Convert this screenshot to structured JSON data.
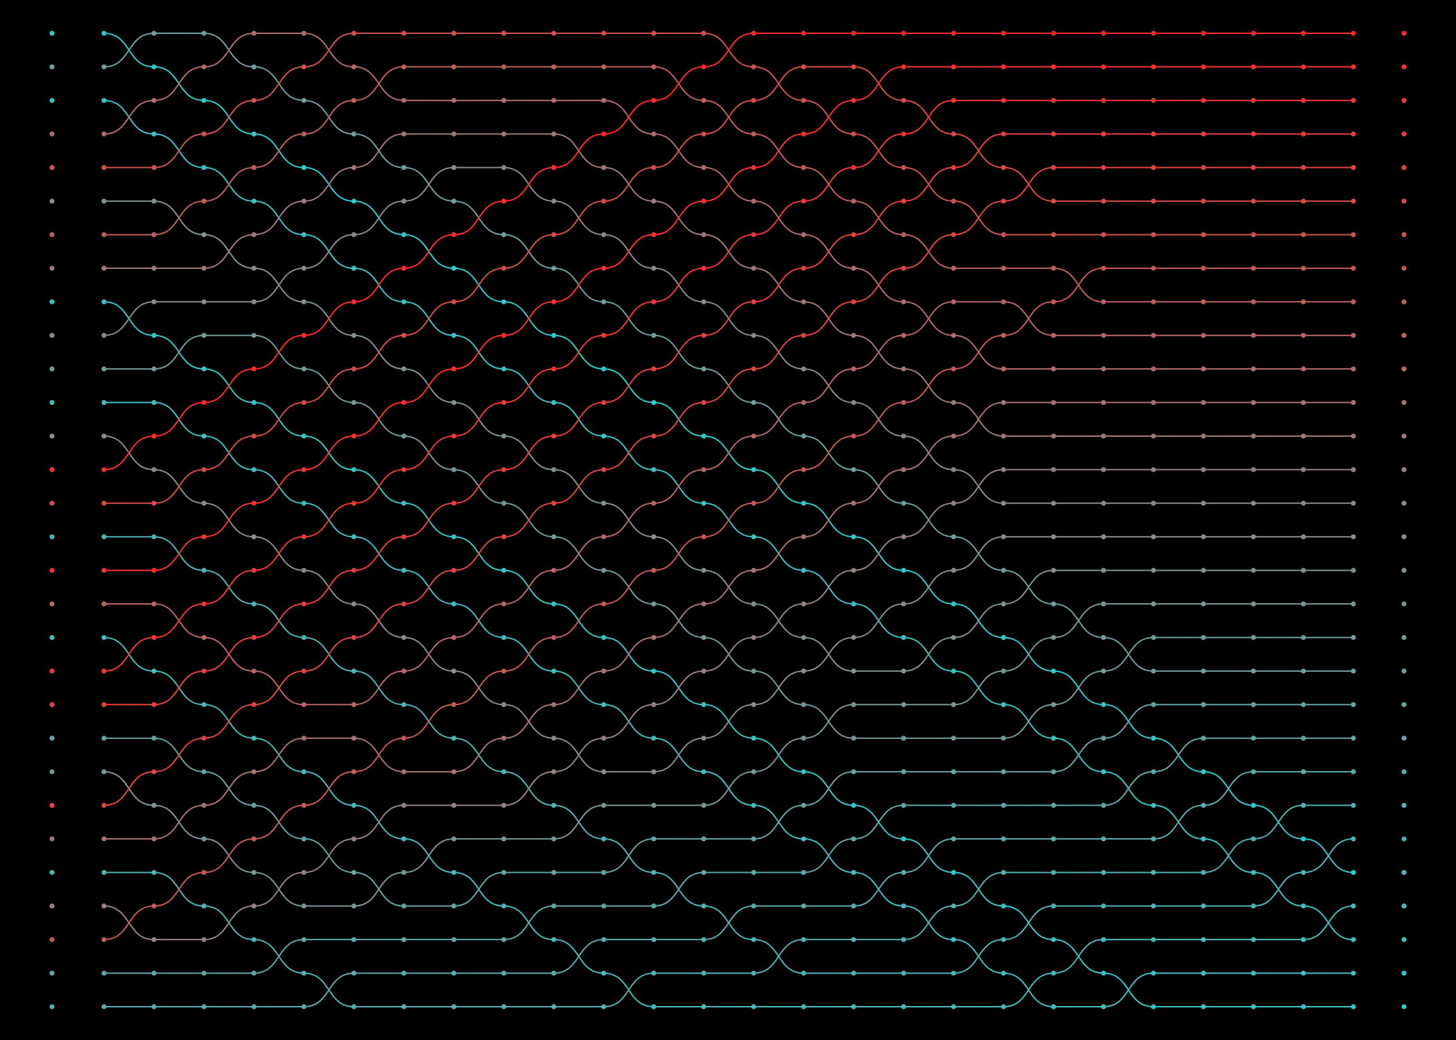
{
  "visualization": {
    "kind": "sorting-network-diagram",
    "background": "#000000",
    "palette": {
      "low": "#2fc9c9",
      "high": "#ff2a2a",
      "neutral": "#8a8a8a"
    },
    "element_count": 30,
    "step_count": 25,
    "input_rank_order": [
      0,
      10,
      2,
      19,
      23,
      13,
      21,
      17,
      1,
      15,
      11,
      3,
      14,
      29,
      24,
      5,
      28,
      20,
      4,
      27,
      26,
      9,
      12,
      25,
      18,
      6,
      16,
      22,
      8,
      7
    ],
    "output_rank_order": [
      29,
      28,
      27,
      26,
      25,
      24,
      23,
      22,
      21,
      20,
      19,
      18,
      17,
      16,
      15,
      14,
      13,
      12,
      11,
      10,
      9,
      8,
      7,
      6,
      5,
      4,
      3,
      2,
      1,
      0
    ]
  }
}
